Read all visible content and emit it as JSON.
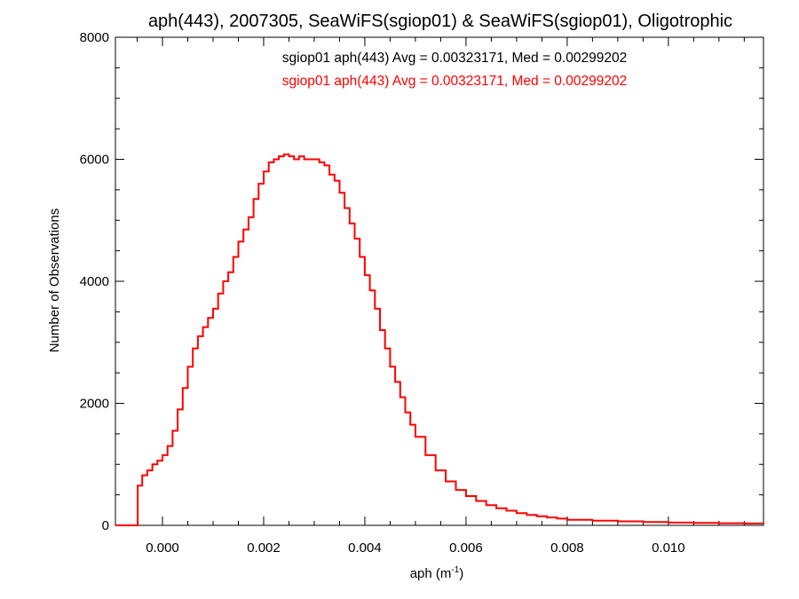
{
  "chart_data": {
    "type": "line",
    "step": true,
    "title": "aph(443), 2007305, SeaWiFS(sgiop01) & SeaWiFS(sgiop01), Oligotrophic",
    "xlabel_base": "aph (m",
    "xlabel_sup": "-1",
    "xlabel_close": ")",
    "ylabel": "Number of Observations",
    "xlim": [
      -0.00093,
      0.01188
    ],
    "ylim": [
      0,
      8000
    ],
    "x_ticks": [
      0.0,
      0.002,
      0.004,
      0.006,
      0.008,
      0.01
    ],
    "x_tick_labels": [
      "0.000",
      "0.002",
      "0.004",
      "0.006",
      "0.008",
      "0.010"
    ],
    "y_ticks": [
      0,
      2000,
      4000,
      6000,
      8000
    ],
    "y_tick_labels": [
      "0",
      "2000",
      "4000",
      "6000",
      "8000"
    ],
    "legend_position": "top",
    "series": [
      {
        "name": "sgiop01 aph(443) Avg = 0.00323171, Med = 0.00299202",
        "color": "#000000",
        "visible_line": false
      },
      {
        "name": "sgiop01 aph(443) Avg = 0.00323171, Med = 0.00299202",
        "color": "#ff0000",
        "visible_line": true
      }
    ],
    "curve": {
      "x": [
        -0.00093,
        -0.0005,
        -0.00049,
        -0.0004,
        -0.0003,
        -0.0002,
        -0.0001,
        0.0,
        0.0001,
        0.0002,
        0.0003,
        0.0004,
        0.0005,
        0.0006,
        0.0007,
        0.0008,
        0.0009,
        0.001,
        0.0011,
        0.0012,
        0.0013,
        0.0014,
        0.0015,
        0.0016,
        0.0017,
        0.0018,
        0.0019,
        0.002,
        0.0021,
        0.0022,
        0.0023,
        0.0024,
        0.0025,
        0.0026,
        0.0027,
        0.0028,
        0.0029,
        0.003,
        0.0031,
        0.0032,
        0.0033,
        0.0034,
        0.0035,
        0.0036,
        0.0037,
        0.0038,
        0.0039,
        0.004,
        0.0041,
        0.0042,
        0.0043,
        0.0044,
        0.0045,
        0.0046,
        0.0047,
        0.0048,
        0.0049,
        0.005,
        0.0052,
        0.0054,
        0.0056,
        0.0058,
        0.006,
        0.0062,
        0.0064,
        0.0066,
        0.0068,
        0.007,
        0.0072,
        0.0074,
        0.0076,
        0.0078,
        0.008,
        0.0085,
        0.009,
        0.0095,
        0.01,
        0.0105,
        0.011,
        0.0115,
        0.01188
      ],
      "y": [
        0,
        0,
        650,
        820,
        900,
        1000,
        1060,
        1150,
        1300,
        1550,
        1900,
        2250,
        2600,
        2900,
        3100,
        3250,
        3400,
        3550,
        3800,
        4000,
        4150,
        4400,
        4650,
        4850,
        5050,
        5350,
        5600,
        5800,
        5950,
        6000,
        6050,
        6080,
        6050,
        6000,
        6050,
        6000,
        6000,
        6000,
        5950,
        5900,
        5750,
        5650,
        5450,
        5200,
        4950,
        4700,
        4400,
        4100,
        3850,
        3550,
        3200,
        2900,
        2600,
        2350,
        2100,
        1850,
        1650,
        1450,
        1150,
        900,
        720,
        580,
        480,
        400,
        330,
        280,
        240,
        200,
        170,
        150,
        130,
        110,
        90,
        75,
        65,
        55,
        45,
        40,
        35,
        30,
        25
      ]
    }
  }
}
